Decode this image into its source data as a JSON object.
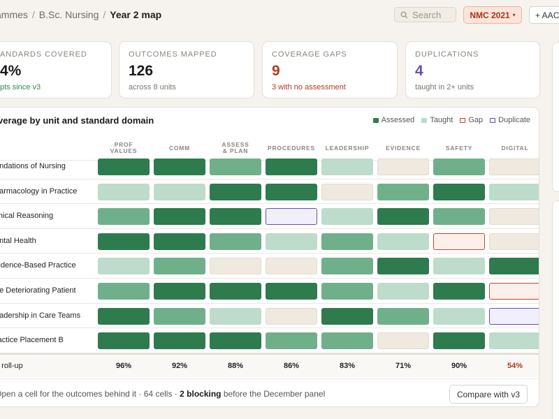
{
  "breadcrumb": {
    "items": [
      "ammes",
      "B.Sc. Nursing"
    ],
    "current": "Year 2 map"
  },
  "search": {
    "placeholder": "Search"
  },
  "framework_select": {
    "value": "NMC 2021"
  },
  "add_button": {
    "label": "+ AAC"
  },
  "stats": [
    {
      "label": "ANDARDS COVERED",
      "value": "4%",
      "sub": "pts since v3",
      "sub_color": "green"
    },
    {
      "label": "OUTCOMES MAPPED",
      "value": "126",
      "sub": "across 8 units"
    },
    {
      "label": "COVERAGE GAPS",
      "value": "9",
      "sub": "3 with no assessment",
      "value_color": "red",
      "sub_color": "red"
    },
    {
      "label": "DUPLICATIONS",
      "value": "4",
      "sub": "taught in 2+ units",
      "value_color": "purple"
    }
  ],
  "panel": {
    "title": "verage by unit and standard domain",
    "legend": [
      {
        "label": "Assessed",
        "kind": "assessed"
      },
      {
        "label": "Taught",
        "kind": "taught"
      },
      {
        "label": "Gap",
        "kind": "gap"
      },
      {
        "label": "Duplicate",
        "kind": "duplicate"
      }
    ],
    "columns": [
      "PROF\nVALUES",
      "COMM",
      "ASSESS\n& PLAN",
      "PROCEDURES",
      "LEADERSHIP",
      "EVIDENCE",
      "SAFETY",
      "DIGITAL"
    ],
    "rows": [
      {
        "label": "undations of Nursing",
        "cells": [
          "assessed",
          "assessed",
          "mapped",
          "assessed",
          "taught",
          "none",
          "mapped",
          "none"
        ]
      },
      {
        "label": "harmacology in Practice",
        "cells": [
          "taught",
          "taught",
          "assessed",
          "assessed",
          "none",
          "mapped",
          "assessed",
          "taught"
        ]
      },
      {
        "label": "linical Reasoning",
        "cells": [
          "mapped",
          "assessed",
          "assessed",
          "duplicate",
          "taught",
          "assessed",
          "mapped",
          "none"
        ]
      },
      {
        "label": "ental Health",
        "cells": [
          "assessed",
          "assessed",
          "mapped",
          "taught",
          "mapped",
          "taught",
          "gap",
          "none"
        ]
      },
      {
        "label": "vidence-Based Practice",
        "cells": [
          "taught",
          "mapped",
          "none",
          "none",
          "mapped",
          "assessed",
          "taught",
          "assessed"
        ]
      },
      {
        "label": "he Deteriorating Patient",
        "cells": [
          "mapped",
          "assessed",
          "assessed",
          "assessed",
          "mapped",
          "taught",
          "assessed",
          "gap"
        ]
      },
      {
        "label": "eadership in Care Teams",
        "cells": [
          "assessed",
          "mapped",
          "taught",
          "none",
          "assessed",
          "mapped",
          "taught",
          "duplicate"
        ]
      },
      {
        "label": "ractice Placement B",
        "cells": [
          "assessed",
          "assessed",
          "assessed",
          "mapped",
          "mapped",
          "none",
          "assessed",
          "taught"
        ]
      }
    ],
    "rollup": {
      "label": "2 roll-up",
      "values": [
        "96%",
        "92%",
        "88%",
        "86%",
        "83%",
        "71%",
        "90%",
        "54%"
      ],
      "flagged_index": 7
    },
    "footer": {
      "text_before": "Open a cell for the outcomes behind it · 64 cells · ",
      "bold": "2 blocking",
      "text_after": " before the December panel"
    },
    "compare_button": {
      "label": "Compare with v3"
    }
  },
  "colors": {
    "assessed": "#2e7b4e",
    "mapped": "#6fb08a",
    "taught": "#bddccb",
    "gap_border": "#b84a37",
    "duplicate_border": "#6a4bb3",
    "accent_red": "#b7371f"
  }
}
